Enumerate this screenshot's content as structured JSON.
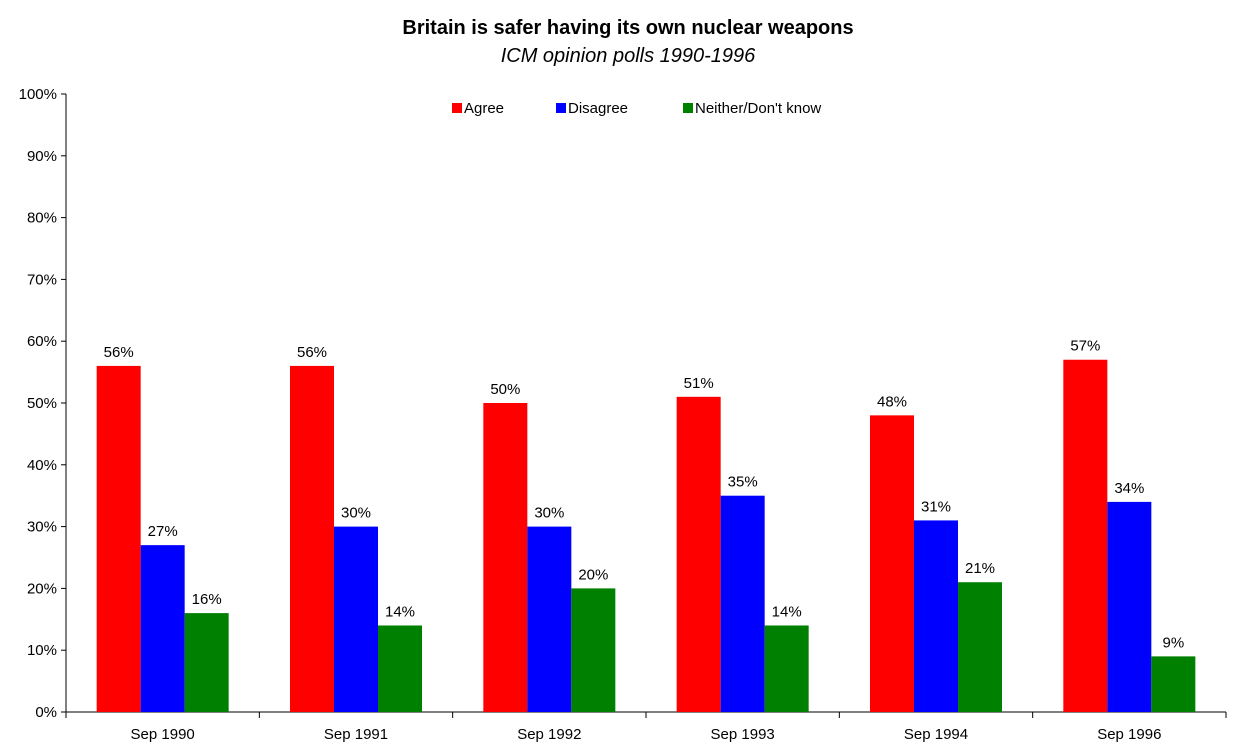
{
  "chart_data": {
    "type": "bar",
    "title": "Britain is safer having its own nuclear weapons",
    "subtitle": "ICM opinion polls 1990-1996",
    "xlabel": "",
    "ylabel": "",
    "categories": [
      "Sep 1990",
      "Sep 1991",
      "Sep 1992",
      "Sep 1993",
      "Sep 1994",
      "Sep 1996"
    ],
    "ylim": [
      0,
      100
    ],
    "yticks": [
      0,
      10,
      20,
      30,
      40,
      50,
      60,
      70,
      80,
      90,
      100
    ],
    "ytick_labels": [
      "0%",
      "10%",
      "20%",
      "30%",
      "40%",
      "50%",
      "60%",
      "70%",
      "80%",
      "90%",
      "100%"
    ],
    "value_suffix": "%",
    "grid": false,
    "legend_position": "top",
    "series": [
      {
        "name": "Agree",
        "color": "#ff0000",
        "values": [
          56,
          56,
          50,
          51,
          48,
          57
        ],
        "labels": [
          "56%",
          "56%",
          "50%",
          "51%",
          "48%",
          "57%"
        ]
      },
      {
        "name": "Disagree",
        "color": "#0000ff",
        "values": [
          27,
          30,
          30,
          35,
          31,
          34
        ],
        "labels": [
          "27%",
          "30%",
          "30%",
          "35%",
          "31%",
          "34%"
        ]
      },
      {
        "name": "Neither/Don't know",
        "color": "#008000",
        "values": [
          16,
          14,
          20,
          14,
          21,
          9
        ],
        "labels": [
          "16%",
          "14%",
          "20%",
          "14%",
          "21%",
          "9%"
        ]
      }
    ]
  }
}
